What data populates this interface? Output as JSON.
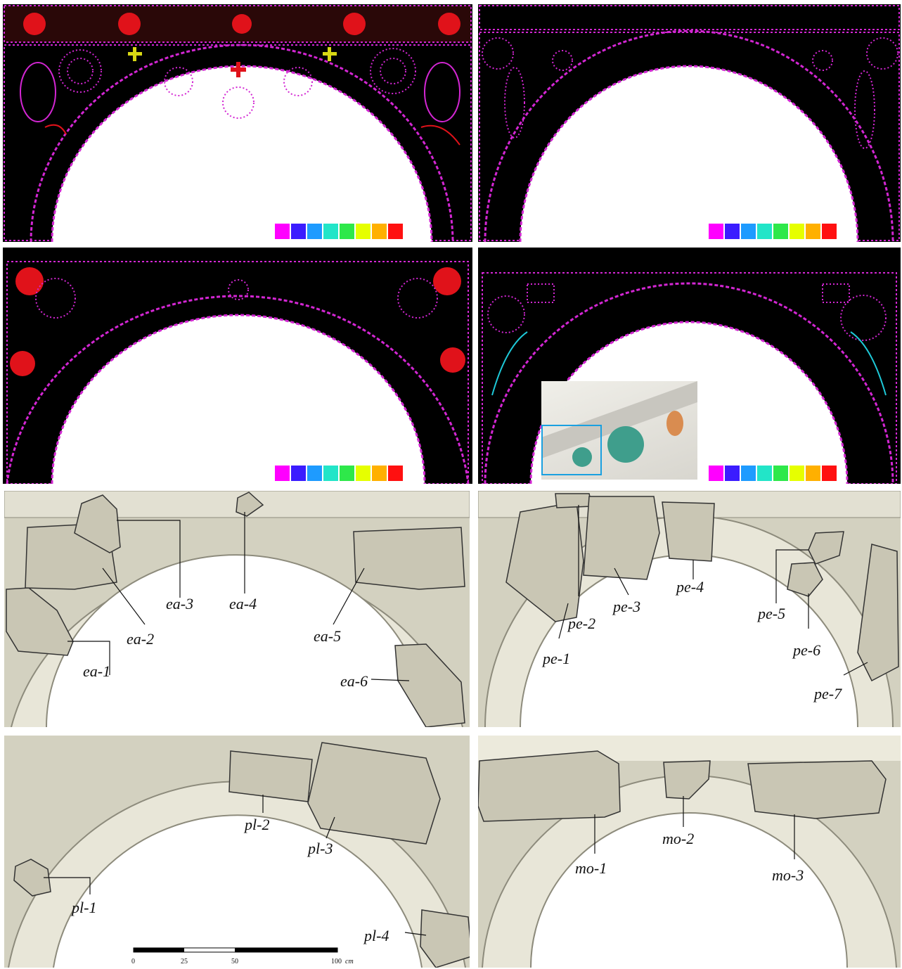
{
  "palette": [
    "#ff00ff",
    "#3b1cff",
    "#1e9bff",
    "#22e5c8",
    "#2ee84a",
    "#e6ff00",
    "#ffb000",
    "#ff1010"
  ],
  "colors": {
    "magenta": "#d326d3",
    "red": "#e0121a",
    "yellow": "#d8d814",
    "cyan": "#1ec9d8",
    "line_paper": "#d3d1c0",
    "line_ink": "#8d8b7c",
    "fragment_stone": "#c9c6b4",
    "inset_frame": "#1aa0e0"
  },
  "panels": {
    "ea": {
      "fragments": [
        {
          "label": "ea-1"
        },
        {
          "label": "ea-2"
        },
        {
          "label": "ea-3"
        },
        {
          "label": "ea-4"
        },
        {
          "label": "ea-5"
        },
        {
          "label": "ea-6"
        }
      ]
    },
    "pe": {
      "fragments": [
        {
          "label": "pe-1"
        },
        {
          "label": "pe-2"
        },
        {
          "label": "pe-3"
        },
        {
          "label": "pe-4"
        },
        {
          "label": "pe-5"
        },
        {
          "label": "pe-6"
        },
        {
          "label": "pe-7"
        }
      ]
    },
    "pl": {
      "fragments": [
        {
          "label": "pl-1"
        },
        {
          "label": "pl-2"
        },
        {
          "label": "pl-3"
        },
        {
          "label": "pl-4"
        }
      ]
    },
    "mo": {
      "fragments": [
        {
          "label": "mo-1"
        },
        {
          "label": "mo-2"
        },
        {
          "label": "mo-3"
        }
      ]
    }
  },
  "scale_bar": {
    "ticks": [
      "0",
      "25",
      "50",
      "100"
    ],
    "unit": "cm"
  }
}
